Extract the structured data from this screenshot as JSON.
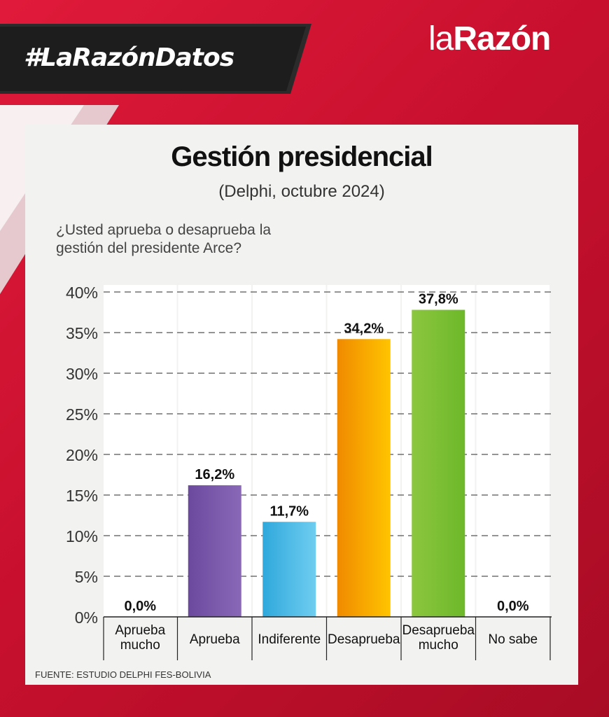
{
  "header": {
    "hashtag": "#LaRazónDatos",
    "logo_la": "la",
    "logo_razon": "Razón"
  },
  "card": {
    "title": "Gestión presidencial",
    "subtitle": "(Delphi, octubre 2024)",
    "question": "¿Usted aprueba o desaprueba la gestión del presidente Arce?",
    "source": "FUENTE: ESTUDIO DELPHI FES-BOLIVIA"
  },
  "colors": {
    "background": "#c8102e",
    "card": "#f2f2f0",
    "aprueba": "#6b4a9e",
    "indiferente": "#3aaee0",
    "desaprueba": "#f5a000",
    "desaprueba_mucho": "#8cc63f"
  },
  "chart_data": {
    "type": "bar",
    "title": "Gestión presidencial",
    "subtitle": "(Delphi, octubre 2024)",
    "categories": [
      [
        "Aprueba",
        "mucho"
      ],
      [
        "Aprueba"
      ],
      [
        "Indiferente"
      ],
      [
        "Desaprueba"
      ],
      [
        "Desaprueba",
        "mucho"
      ],
      [
        "No sabe"
      ]
    ],
    "values": [
      0.0,
      16.2,
      11.7,
      34.2,
      37.8,
      0.0
    ],
    "value_labels": [
      "0,0%",
      "16,2%",
      "11,7%",
      "34,2%",
      "37,8%",
      "0,0%"
    ],
    "bar_colors": [
      [
        "#6b4a9e",
        "#8a68b8"
      ],
      [
        "#6b4a9e",
        "#8a68b8"
      ],
      [
        "#2fa8dc",
        "#6fcdf0"
      ],
      [
        "#f08a00",
        "#ffc400"
      ],
      [
        "#8cc63f",
        "#6db82a"
      ],
      [
        "#999999",
        "#999999"
      ]
    ],
    "yticks": [
      "0%",
      "5%",
      "10%",
      "15%",
      "20%",
      "25%",
      "30%",
      "35%",
      "40%"
    ],
    "ylim": [
      0,
      40
    ],
    "grid": true,
    "xlabel": "",
    "ylabel": ""
  }
}
